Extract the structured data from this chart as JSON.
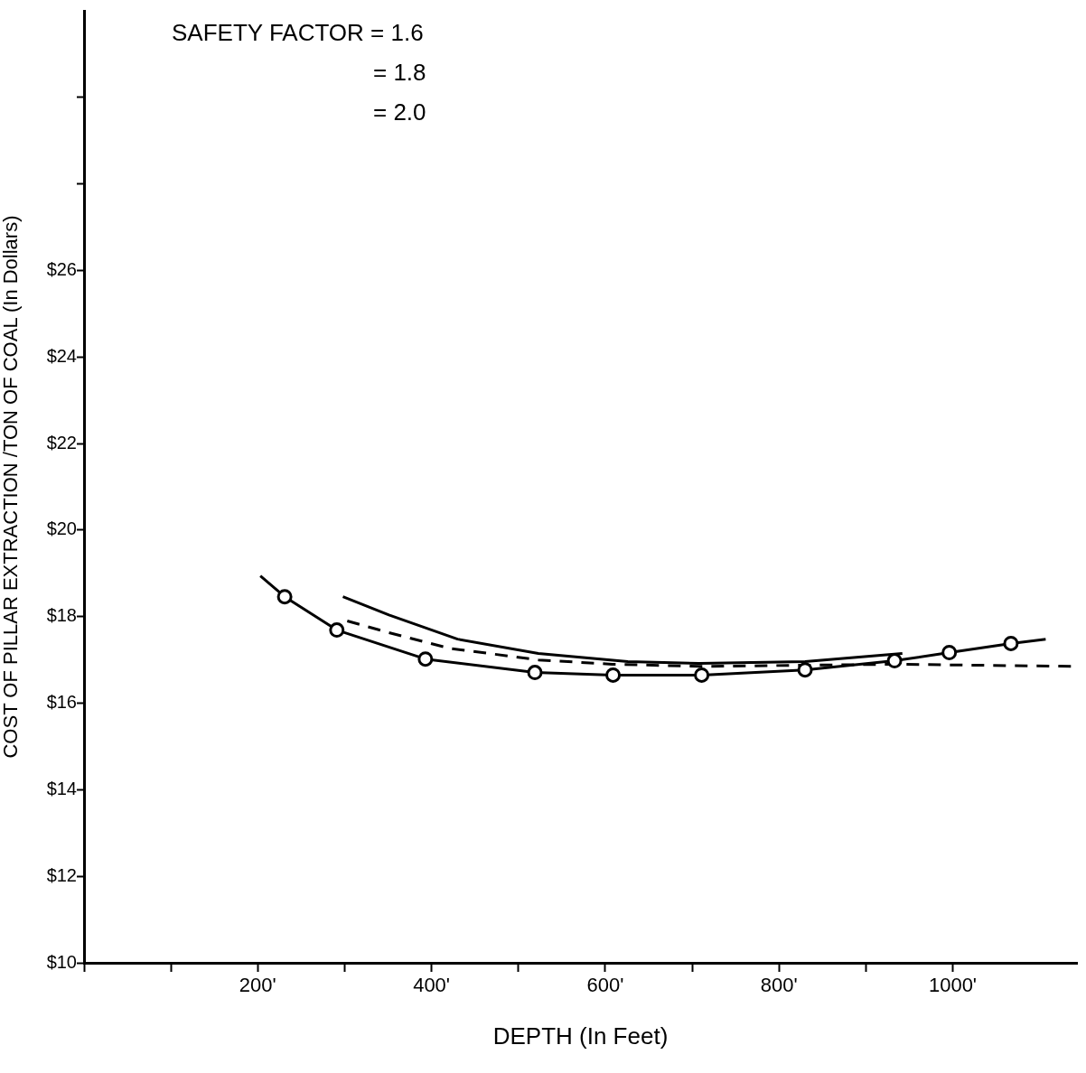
{
  "chart_data": {
    "type": "line",
    "xlabel": "DEPTH (In Feet)",
    "ylabel": "COST OF PILLAR EXTRACTION /TON OF COAL (In Dollars)",
    "annotations": [
      "SAFETY FACTOR = 1.6",
      "= 1.8",
      "= 2.0"
    ],
    "xlim": [
      0,
      1143
    ],
    "xticks": [
      {
        "value": 0,
        "label": null
      },
      {
        "value": 100,
        "label": null
      },
      {
        "value": 200,
        "label": "200'"
      },
      {
        "value": 300,
        "label": null
      },
      {
        "value": 400,
        "label": "400'"
      },
      {
        "value": 500,
        "label": null
      },
      {
        "value": 600,
        "label": "600'"
      },
      {
        "value": 700,
        "label": null
      },
      {
        "value": 800,
        "label": "800'"
      },
      {
        "value": 900,
        "label": null
      },
      {
        "value": 1000,
        "label": "1000'"
      }
    ],
    "ylim": [
      10,
      32
    ],
    "yticks": [
      {
        "value": 10,
        "label": "$10"
      },
      {
        "value": 12,
        "label": "$12"
      },
      {
        "value": 14,
        "label": "$14"
      },
      {
        "value": 16,
        "label": "$16"
      },
      {
        "value": 18,
        "label": "$18"
      },
      {
        "value": 20,
        "label": "$20"
      },
      {
        "value": 22,
        "label": "$22"
      },
      {
        "value": 24,
        "label": "$24"
      },
      {
        "value": 26,
        "label": "$26"
      },
      {
        "value": 28,
        "label": null
      },
      {
        "value": 30,
        "label": null
      }
    ],
    "grid": false,
    "legend": false,
    "series": [
      {
        "type": "line",
        "color": "#000000",
        "line_style": "solid",
        "x": [
          203,
          231,
          291,
          393,
          519,
          609,
          711,
          830,
          933,
          996,
          1067,
          1107
        ],
        "values": [
          18.94,
          18.46,
          17.69,
          17.02,
          16.71,
          16.65,
          16.65,
          16.77,
          16.98,
          17.17,
          17.38,
          17.48
        ]
      },
      {
        "type": "scatter",
        "color": "#000000",
        "marker": "circle",
        "x": [
          231,
          291,
          393,
          519,
          609,
          711,
          830,
          933,
          996,
          1067
        ],
        "values": [
          18.46,
          17.69,
          17.02,
          16.71,
          16.65,
          16.65,
          16.77,
          16.98,
          17.17,
          17.38
        ]
      },
      {
        "type": "line",
        "color": "#000000",
        "line_style": "solid",
        "x": [
          298,
          351,
          430,
          523,
          626,
          708,
          830,
          942
        ],
        "values": [
          18.46,
          18.04,
          17.48,
          17.15,
          16.96,
          16.92,
          16.96,
          17.15
        ]
      },
      {
        "type": "line",
        "color": "#000000",
        "line_style": "dashed",
        "x": [
          303,
          351,
          420,
          523,
          608,
          708,
          933,
          1143
        ],
        "values": [
          17.9,
          17.63,
          17.27,
          17.0,
          16.9,
          16.85,
          16.9,
          16.85
        ]
      }
    ]
  }
}
